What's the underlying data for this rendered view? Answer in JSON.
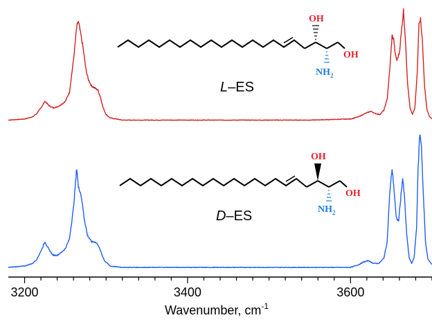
{
  "chart_data": {
    "type": "line",
    "xlabel": "Wavenumber, cm",
    "xlabel_superscript": "-1",
    "xlim": [
      3180,
      3700
    ],
    "xticks": [
      "3200",
      "3400",
      "3600"
    ],
    "grid": false,
    "y_axis_shown": false,
    "series": [
      {
        "name": "L–ES",
        "name_prefix": "L",
        "name_suffix": "–ES",
        "color": "#d42020",
        "baseline": 0,
        "points": [
          [
            3180,
            0.01
          ],
          [
            3200,
            0.02
          ],
          [
            3210,
            0.04
          ],
          [
            3215,
            0.07
          ],
          [
            3220,
            0.12
          ],
          [
            3225,
            0.18
          ],
          [
            3230,
            0.14
          ],
          [
            3235,
            0.12
          ],
          [
            3240,
            0.13
          ],
          [
            3245,
            0.15
          ],
          [
            3250,
            0.18
          ],
          [
            3255,
            0.26
          ],
          [
            3260,
            0.55
          ],
          [
            3264,
            0.85
          ],
          [
            3266,
            0.9
          ],
          [
            3268,
            0.82
          ],
          [
            3270,
            0.74
          ],
          [
            3272,
            0.65
          ],
          [
            3275,
            0.48
          ],
          [
            3278,
            0.38
          ],
          [
            3282,
            0.32
          ],
          [
            3286,
            0.3
          ],
          [
            3290,
            0.28
          ],
          [
            3293,
            0.22
          ],
          [
            3296,
            0.13
          ],
          [
            3300,
            0.06
          ],
          [
            3305,
            0.03
          ],
          [
            3320,
            0.01
          ],
          [
            3400,
            0.01
          ],
          [
            3550,
            0.01
          ],
          [
            3600,
            0.02
          ],
          [
            3610,
            0.04
          ],
          [
            3618,
            0.07
          ],
          [
            3625,
            0.09
          ],
          [
            3630,
            0.07
          ],
          [
            3636,
            0.06
          ],
          [
            3641,
            0.1
          ],
          [
            3645,
            0.2
          ],
          [
            3648,
            0.45
          ],
          [
            3651,
            0.77
          ],
          [
            3653,
            0.74
          ],
          [
            3655,
            0.6
          ],
          [
            3657,
            0.55
          ],
          [
            3660,
            0.62
          ],
          [
            3663,
            0.85
          ],
          [
            3665,
            1.0
          ],
          [
            3667,
            0.78
          ],
          [
            3670,
            0.35
          ],
          [
            3673,
            0.12
          ],
          [
            3676,
            0.06
          ],
          [
            3679,
            0.12
          ],
          [
            3682,
            0.45
          ],
          [
            3684,
            0.9
          ],
          [
            3686,
            0.92
          ],
          [
            3688,
            0.75
          ],
          [
            3691,
            0.3
          ],
          [
            3694,
            0.1
          ],
          [
            3697,
            0.04
          ],
          [
            3700,
            0.02
          ]
        ]
      },
      {
        "name": "D–ES",
        "name_prefix": "D",
        "name_suffix": "–ES",
        "color": "#1f5ef0",
        "baseline": 0,
        "points": [
          [
            3180,
            0.01
          ],
          [
            3200,
            0.02
          ],
          [
            3210,
            0.04
          ],
          [
            3215,
            0.07
          ],
          [
            3220,
            0.13
          ],
          [
            3225,
            0.2
          ],
          [
            3230,
            0.14
          ],
          [
            3235,
            0.1
          ],
          [
            3240,
            0.1
          ],
          [
            3245,
            0.12
          ],
          [
            3250,
            0.15
          ],
          [
            3255,
            0.22
          ],
          [
            3260,
            0.45
          ],
          [
            3264,
            0.75
          ],
          [
            3266,
            0.6
          ],
          [
            3268,
            0.58
          ],
          [
            3270,
            0.52
          ],
          [
            3273,
            0.38
          ],
          [
            3277,
            0.25
          ],
          [
            3282,
            0.2
          ],
          [
            3286,
            0.2
          ],
          [
            3290,
            0.18
          ],
          [
            3294,
            0.12
          ],
          [
            3298,
            0.06
          ],
          [
            3305,
            0.02
          ],
          [
            3320,
            0.01
          ],
          [
            3400,
            0.01
          ],
          [
            3550,
            0.01
          ],
          [
            3600,
            0.01
          ],
          [
            3610,
            0.03
          ],
          [
            3616,
            0.05
          ],
          [
            3622,
            0.06
          ],
          [
            3628,
            0.04
          ],
          [
            3635,
            0.04
          ],
          [
            3641,
            0.08
          ],
          [
            3645,
            0.2
          ],
          [
            3648,
            0.55
          ],
          [
            3651,
            0.74
          ],
          [
            3653,
            0.62
          ],
          [
            3656,
            0.38
          ],
          [
            3659,
            0.35
          ],
          [
            3662,
            0.55
          ],
          [
            3664,
            0.67
          ],
          [
            3666,
            0.55
          ],
          [
            3669,
            0.25
          ],
          [
            3672,
            0.08
          ],
          [
            3675,
            0.04
          ],
          [
            3678,
            0.08
          ],
          [
            3681,
            0.3
          ],
          [
            3683,
            0.75
          ],
          [
            3685,
            1.0
          ],
          [
            3687,
            0.92
          ],
          [
            3689,
            0.6
          ],
          [
            3692,
            0.2
          ],
          [
            3695,
            0.07
          ],
          [
            3700,
            0.03
          ]
        ]
      }
    ]
  },
  "structure_labels": {
    "oh_top": "OH",
    "oh_terminal": "OH",
    "nh": "NH",
    "nh_sub": "2"
  },
  "colors": {
    "hydroxyl": "#e8202a",
    "amine": "#1c7fd6",
    "bond": "#000000"
  }
}
